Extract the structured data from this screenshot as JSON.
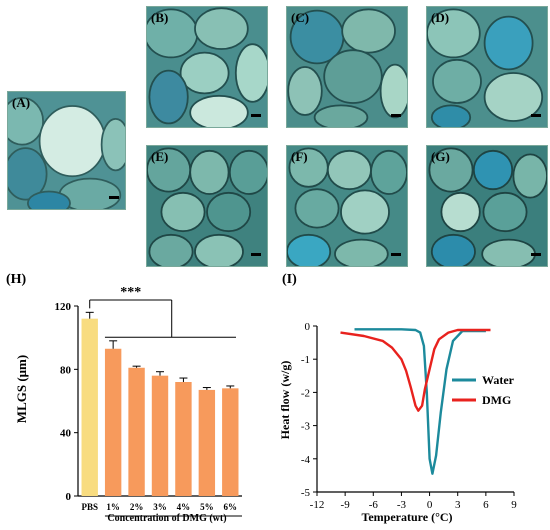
{
  "micrographs": [
    {
      "label": "(A)"
    },
    {
      "label": "(B)"
    },
    {
      "label": "(C)"
    },
    {
      "label": "(D)"
    },
    {
      "label": "(E)"
    },
    {
      "label": "(F)"
    },
    {
      "label": "(G)"
    }
  ],
  "panel_labels": {
    "h": "(H)",
    "i": "(I)"
  },
  "chart_data": [
    {
      "type": "bar",
      "categories": [
        "PBS",
        "1%",
        "2%",
        "3%",
        "4%",
        "5%",
        "6%"
      ],
      "values": [
        112,
        93,
        81,
        76,
        72,
        67,
        68
      ],
      "errors": [
        4,
        5,
        1,
        2.5,
        2.5,
        1.5,
        1.5
      ],
      "colors": [
        "#f8dc80",
        "#f79a5c",
        "#f79a5c",
        "#f79a5c",
        "#f79a5c",
        "#f79a5c",
        "#f79a5c"
      ],
      "ylabel": "MLGS (μm)",
      "xlabel": "Concentration of DMG (wt)",
      "ylim": [
        0,
        120
      ],
      "yticks": [
        0,
        40,
        80,
        120
      ],
      "significance": "***"
    },
    {
      "type": "line",
      "xlabel": "Temperature (°C)",
      "ylabel": "Heat flow (w/g)",
      "xlim": [
        -12,
        9
      ],
      "ylim": [
        -5,
        0
      ],
      "xticks": [
        -12,
        -9,
        -6,
        -3,
        0,
        3,
        6,
        9
      ],
      "yticks": [
        -5,
        -4,
        -3,
        -2,
        -1,
        0
      ],
      "legend_position": "right",
      "series": [
        {
          "name": "Water",
          "color": "#1c8a9c",
          "x": [
            -8,
            -3,
            -1.5,
            -1,
            -0.6,
            -0.3,
            0,
            0.3,
            0.7,
            1.2,
            1.8,
            2.5,
            3.5,
            6
          ],
          "y": [
            -0.1,
            -0.1,
            -0.12,
            -0.2,
            -0.6,
            -2.0,
            -4.0,
            -4.45,
            -3.9,
            -2.6,
            -1.3,
            -0.45,
            -0.15,
            -0.15
          ]
        },
        {
          "name": "DMG",
          "color": "#e8221e",
          "x": [
            -9.5,
            -7,
            -5,
            -4,
            -3,
            -2.5,
            -2,
            -1.5,
            -1.2,
            -0.8,
            -0.5,
            0,
            0.5,
            1,
            2,
            3,
            6.5
          ],
          "y": [
            -0.2,
            -0.3,
            -0.45,
            -0.65,
            -1.0,
            -1.35,
            -1.85,
            -2.4,
            -2.55,
            -2.4,
            -1.9,
            -1.3,
            -0.7,
            -0.4,
            -0.2,
            -0.12,
            -0.12
          ]
        }
      ]
    }
  ]
}
